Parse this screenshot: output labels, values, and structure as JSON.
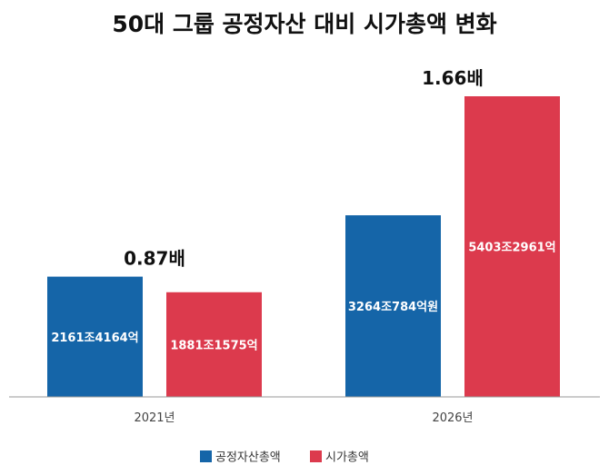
{
  "chart_data": {
    "type": "bar",
    "title": "50대 그룹 공정자산 대비 시가총액 변화",
    "categories": [
      "2021년",
      "2026년"
    ],
    "unit": "조원",
    "series": [
      {
        "name": "공정자산총액",
        "color": "#1565a8",
        "values": [
          2161.4164,
          3264.0784
        ],
        "labels": [
          "2161조4164억",
          "3264조784억원"
        ]
      },
      {
        "name": "시가총액",
        "color": "#dc3a4d",
        "values": [
          1881.1575,
          5403.2961
        ],
        "labels": [
          "1881조1575억",
          "5403조2961억"
        ]
      }
    ],
    "ratio_labels": [
      "0.87배",
      "1.66배"
    ],
    "ylim": [
      0,
      5403.2961
    ],
    "grid": false,
    "legend": "bottom-center"
  }
}
